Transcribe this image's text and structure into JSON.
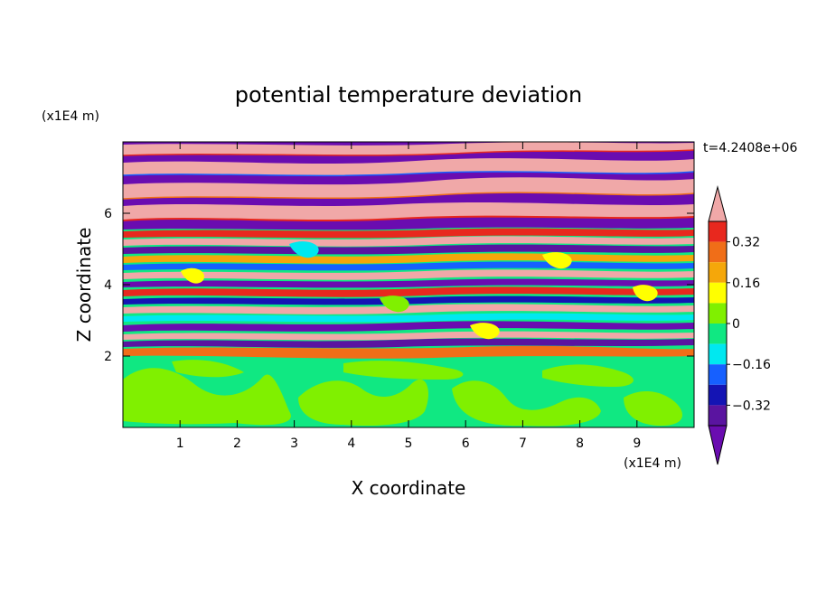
{
  "chart_data": {
    "type": "heatmap",
    "title": "potential temperature deviation",
    "xlabel": "X coordinate",
    "ylabel": "Z coordinate",
    "x_unit": "(x1E4 m)",
    "y_unit": "(x1E4 m)",
    "time_label": "t=4.2408e+06",
    "xlim": [
      0,
      10
    ],
    "ylim": [
      0,
      8
    ],
    "x_ticks": [
      1,
      2,
      3,
      4,
      5,
      6,
      7,
      8,
      9
    ],
    "y_ticks": [
      2,
      4,
      6
    ],
    "colorbar": {
      "levels": [
        -0.4,
        -0.32,
        -0.24,
        -0.16,
        -0.08,
        0,
        0.08,
        0.16,
        0.24,
        0.32,
        0.4
      ],
      "tick_labels": [
        "0.32",
        "0.16",
        "0",
        "−0.16",
        "−0.32"
      ],
      "tick_values": [
        0.32,
        0.16,
        0,
        -0.16,
        -0.32
      ],
      "colors_top_to_bottom": [
        "#f0a8a8",
        "#e8281e",
        "#f06e18",
        "#f5a70a",
        "#ffff00",
        "#80f000",
        "#10e882",
        "#00e8f0",
        "#1660ff",
        "#1414b4",
        "#5a14a0",
        "#6a0cb0"
      ],
      "extends": "both"
    },
    "regions": [
      {
        "z_range": [
          0,
          2.1
        ],
        "pattern": "smooth mixed-layer blobs",
        "values": [
          -0.04,
          0.04
        ]
      },
      {
        "z_range": [
          2.1,
          5.6
        ],
        "pattern": "thin interleaved layers",
        "values": [
          -0.5,
          0.5
        ]
      },
      {
        "z_range": [
          5.6,
          8
        ],
        "pattern": "thick alternating bands",
        "values": [
          -0.5,
          0.5
        ]
      }
    ]
  }
}
